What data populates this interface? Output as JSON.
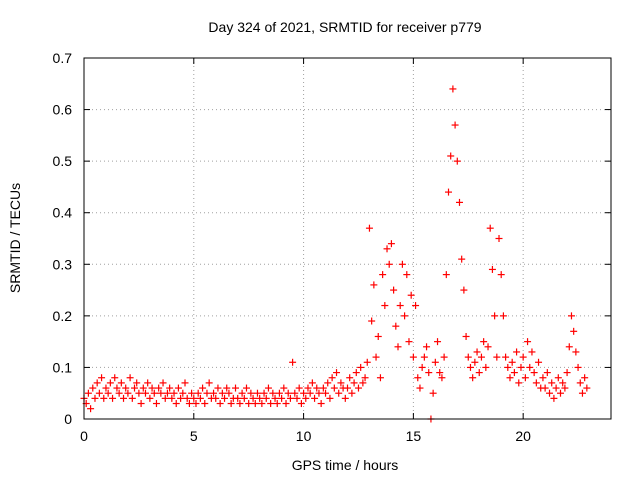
{
  "chart_data": {
    "type": "scatter",
    "title": "Day 324 of 2021, SRMTID for receiver p779",
    "xlabel": "GPS time / hours",
    "ylabel": "SRMTID / TECUs",
    "xlim": [
      0,
      24
    ],
    "ylim": [
      0,
      0.7
    ],
    "xticks": [
      0,
      5,
      10,
      15,
      20
    ],
    "yticks": [
      0,
      0.1,
      0.2,
      0.3,
      0.4,
      0.5,
      0.6,
      0.7
    ],
    "xtick_labels": [
      "0",
      "5",
      "10",
      "15",
      "20"
    ],
    "ytick_labels": [
      "0",
      "0.1",
      "0.2",
      "0.3",
      "0.4",
      "0.5",
      "0.6",
      "0.7"
    ],
    "grid": true,
    "marker": "+",
    "color": "#ff0000",
    "series": [
      {
        "name": "SRMTID",
        "points": [
          [
            0.0,
            0.04
          ],
          [
            0.1,
            0.03
          ],
          [
            0.2,
            0.05
          ],
          [
            0.3,
            0.02
          ],
          [
            0.4,
            0.06
          ],
          [
            0.5,
            0.04
          ],
          [
            0.6,
            0.07
          ],
          [
            0.7,
            0.05
          ],
          [
            0.8,
            0.08
          ],
          [
            0.9,
            0.04
          ],
          [
            1.0,
            0.06
          ],
          [
            1.1,
            0.05
          ],
          [
            1.2,
            0.07
          ],
          [
            1.3,
            0.04
          ],
          [
            1.4,
            0.08
          ],
          [
            1.5,
            0.06
          ],
          [
            1.6,
            0.05
          ],
          [
            1.7,
            0.07
          ],
          [
            1.8,
            0.04
          ],
          [
            1.9,
            0.06
          ],
          [
            2.0,
            0.05
          ],
          [
            2.1,
            0.08
          ],
          [
            2.2,
            0.04
          ],
          [
            2.3,
            0.06
          ],
          [
            2.4,
            0.07
          ],
          [
            2.5,
            0.05
          ],
          [
            2.6,
            0.03
          ],
          [
            2.7,
            0.06
          ],
          [
            2.8,
            0.05
          ],
          [
            2.9,
            0.07
          ],
          [
            3.0,
            0.04
          ],
          [
            3.1,
            0.06
          ],
          [
            3.2,
            0.05
          ],
          [
            3.3,
            0.03
          ],
          [
            3.4,
            0.06
          ],
          [
            3.5,
            0.05
          ],
          [
            3.6,
            0.07
          ],
          [
            3.7,
            0.04
          ],
          [
            3.8,
            0.05
          ],
          [
            3.9,
            0.06
          ],
          [
            4.0,
            0.04
          ],
          [
            4.1,
            0.05
          ],
          [
            4.2,
            0.03
          ],
          [
            4.3,
            0.06
          ],
          [
            4.4,
            0.04
          ],
          [
            4.5,
            0.05
          ],
          [
            4.6,
            0.07
          ],
          [
            4.7,
            0.04
          ],
          [
            4.8,
            0.03
          ],
          [
            4.9,
            0.05
          ],
          [
            5.0,
            0.04
          ],
          [
            5.1,
            0.03
          ],
          [
            5.2,
            0.05
          ],
          [
            5.3,
            0.04
          ],
          [
            5.4,
            0.06
          ],
          [
            5.5,
            0.03
          ],
          [
            5.6,
            0.05
          ],
          [
            5.7,
            0.07
          ],
          [
            5.8,
            0.04
          ],
          [
            5.9,
            0.05
          ],
          [
            6.0,
            0.04
          ],
          [
            6.1,
            0.06
          ],
          [
            6.2,
            0.03
          ],
          [
            6.3,
            0.05
          ],
          [
            6.4,
            0.04
          ],
          [
            6.5,
            0.06
          ],
          [
            6.6,
            0.05
          ],
          [
            6.7,
            0.03
          ],
          [
            6.8,
            0.04
          ],
          [
            6.9,
            0.06
          ],
          [
            7.0,
            0.04
          ],
          [
            7.1,
            0.03
          ],
          [
            7.2,
            0.05
          ],
          [
            7.3,
            0.04
          ],
          [
            7.4,
            0.06
          ],
          [
            7.5,
            0.03
          ],
          [
            7.6,
            0.05
          ],
          [
            7.7,
            0.04
          ],
          [
            7.8,
            0.03
          ],
          [
            7.9,
            0.05
          ],
          [
            8.0,
            0.04
          ],
          [
            8.1,
            0.03
          ],
          [
            8.2,
            0.05
          ],
          [
            8.3,
            0.04
          ],
          [
            8.4,
            0.06
          ],
          [
            8.5,
            0.03
          ],
          [
            8.6,
            0.05
          ],
          [
            8.7,
            0.04
          ],
          [
            8.8,
            0.03
          ],
          [
            8.9,
            0.05
          ],
          [
            9.0,
            0.04
          ],
          [
            9.1,
            0.06
          ],
          [
            9.2,
            0.03
          ],
          [
            9.3,
            0.05
          ],
          [
            9.4,
            0.04
          ],
          [
            9.5,
            0.11
          ],
          [
            9.6,
            0.05
          ],
          [
            9.7,
            0.04
          ],
          [
            9.8,
            0.06
          ],
          [
            9.9,
            0.03
          ],
          [
            10.0,
            0.05
          ],
          [
            10.1,
            0.04
          ],
          [
            10.2,
            0.06
          ],
          [
            10.3,
            0.05
          ],
          [
            10.4,
            0.07
          ],
          [
            10.5,
            0.04
          ],
          [
            10.6,
            0.06
          ],
          [
            10.7,
            0.05
          ],
          [
            10.8,
            0.03
          ],
          [
            10.9,
            0.06
          ],
          [
            11.0,
            0.05
          ],
          [
            11.1,
            0.07
          ],
          [
            11.2,
            0.04
          ],
          [
            11.3,
            0.08
          ],
          [
            11.4,
            0.06
          ],
          [
            11.5,
            0.09
          ],
          [
            11.6,
            0.05
          ],
          [
            11.7,
            0.07
          ],
          [
            11.8,
            0.06
          ],
          [
            11.9,
            0.04
          ],
          [
            12.0,
            0.06
          ],
          [
            12.1,
            0.08
          ],
          [
            12.2,
            0.05
          ],
          [
            12.3,
            0.07
          ],
          [
            12.4,
            0.09
          ],
          [
            12.5,
            0.06
          ],
          [
            12.6,
            0.1
          ],
          [
            12.7,
            0.07
          ],
          [
            12.8,
            0.08
          ],
          [
            12.9,
            0.11
          ],
          [
            13.0,
            0.37
          ],
          [
            13.1,
            0.19
          ],
          [
            13.2,
            0.26
          ],
          [
            13.3,
            0.12
          ],
          [
            13.4,
            0.16
          ],
          [
            13.5,
            0.08
          ],
          [
            13.6,
            0.28
          ],
          [
            13.7,
            0.22
          ],
          [
            13.8,
            0.33
          ],
          [
            13.9,
            0.3
          ],
          [
            14.0,
            0.34
          ],
          [
            14.1,
            0.25
          ],
          [
            14.2,
            0.18
          ],
          [
            14.3,
            0.14
          ],
          [
            14.4,
            0.22
          ],
          [
            14.5,
            0.3
          ],
          [
            14.6,
            0.2
          ],
          [
            14.7,
            0.28
          ],
          [
            14.8,
            0.15
          ],
          [
            14.9,
            0.24
          ],
          [
            15.0,
            0.12
          ],
          [
            15.1,
            0.22
          ],
          [
            15.2,
            0.08
          ],
          [
            15.3,
            0.06
          ],
          [
            15.4,
            0.1
          ],
          [
            15.5,
            0.12
          ],
          [
            15.6,
            0.14
          ],
          [
            15.7,
            0.09
          ],
          [
            15.8,
            0.0
          ],
          [
            15.9,
            0.05
          ],
          [
            16.0,
            0.11
          ],
          [
            16.1,
            0.15
          ],
          [
            16.2,
            0.09
          ],
          [
            16.3,
            0.08
          ],
          [
            16.4,
            0.12
          ],
          [
            16.5,
            0.28
          ],
          [
            16.6,
            0.44
          ],
          [
            16.7,
            0.51
          ],
          [
            16.8,
            0.64
          ],
          [
            16.9,
            0.57
          ],
          [
            17.0,
            0.5
          ],
          [
            17.1,
            0.42
          ],
          [
            17.2,
            0.31
          ],
          [
            17.3,
            0.25
          ],
          [
            17.4,
            0.16
          ],
          [
            17.5,
            0.12
          ],
          [
            17.6,
            0.1
          ],
          [
            17.7,
            0.08
          ],
          [
            17.8,
            0.11
          ],
          [
            17.9,
            0.13
          ],
          [
            18.0,
            0.09
          ],
          [
            18.1,
            0.12
          ],
          [
            18.2,
            0.15
          ],
          [
            18.3,
            0.1
          ],
          [
            18.4,
            0.14
          ],
          [
            18.5,
            0.37
          ],
          [
            18.6,
            0.29
          ],
          [
            18.7,
            0.2
          ],
          [
            18.8,
            0.12
          ],
          [
            18.9,
            0.35
          ],
          [
            19.0,
            0.28
          ],
          [
            19.1,
            0.2
          ],
          [
            19.2,
            0.12
          ],
          [
            19.3,
            0.1
          ],
          [
            19.4,
            0.08
          ],
          [
            19.5,
            0.11
          ],
          [
            19.6,
            0.09
          ],
          [
            19.7,
            0.13
          ],
          [
            19.8,
            0.07
          ],
          [
            19.9,
            0.1
          ],
          [
            20.0,
            0.12
          ],
          [
            20.1,
            0.08
          ],
          [
            20.2,
            0.15
          ],
          [
            20.3,
            0.1
          ],
          [
            20.4,
            0.13
          ],
          [
            20.5,
            0.09
          ],
          [
            20.6,
            0.07
          ],
          [
            20.7,
            0.11
          ],
          [
            20.8,
            0.06
          ],
          [
            20.9,
            0.08
          ],
          [
            21.0,
            0.06
          ],
          [
            21.1,
            0.09
          ],
          [
            21.2,
            0.05
          ],
          [
            21.3,
            0.07
          ],
          [
            21.4,
            0.04
          ],
          [
            21.5,
            0.06
          ],
          [
            21.6,
            0.08
          ],
          [
            21.7,
            0.05
          ],
          [
            21.8,
            0.07
          ],
          [
            21.9,
            0.06
          ],
          [
            22.0,
            0.09
          ],
          [
            22.1,
            0.14
          ],
          [
            22.2,
            0.2
          ],
          [
            22.3,
            0.17
          ],
          [
            22.4,
            0.13
          ],
          [
            22.5,
            0.1
          ],
          [
            22.6,
            0.07
          ],
          [
            22.7,
            0.05
          ],
          [
            22.8,
            0.08
          ],
          [
            22.9,
            0.06
          ]
        ]
      }
    ]
  }
}
